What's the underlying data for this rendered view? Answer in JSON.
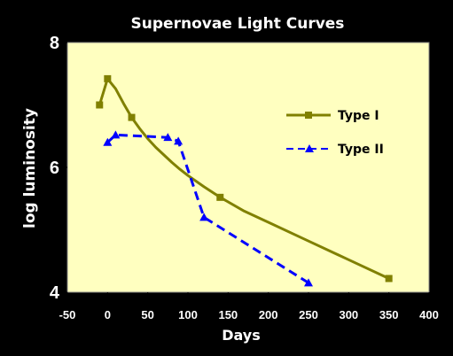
{
  "colors": {
    "background": "#000000",
    "plot_area": "#FFFFC0",
    "text": "#FFFFFF",
    "type_i": "#808000",
    "type_ii": "#0000FF"
  },
  "chart_data": {
    "type": "line",
    "title": "Supernovae Light Curves",
    "xlabel": "Days",
    "ylabel": "log luminosity",
    "xlim": [
      -50,
      400
    ],
    "ylim": [
      4,
      8
    ],
    "x_ticks": [
      "-50",
      "0",
      "50",
      "100",
      "150",
      "200",
      "250",
      "300",
      "350",
      "400"
    ],
    "y_ticks": [
      "4",
      "6",
      "8"
    ],
    "grid": false,
    "legend_position": "right",
    "series": [
      {
        "name": "Type I",
        "line_style": "solid",
        "marker": "square",
        "x": [
          -10,
          0,
          30,
          140,
          350
        ],
        "y": [
          7.0,
          7.42,
          6.8,
          5.52,
          4.22
        ],
        "curve_x": [
          -10,
          0,
          10,
          20,
          30,
          40,
          50,
          60,
          70,
          80,
          90,
          100,
          120,
          140,
          170,
          200,
          250,
          300,
          350
        ],
        "curve_y": [
          7.0,
          7.42,
          7.26,
          7.02,
          6.8,
          6.62,
          6.46,
          6.32,
          6.2,
          6.08,
          5.97,
          5.87,
          5.69,
          5.52,
          5.3,
          5.12,
          4.82,
          4.52,
          4.22
        ]
      },
      {
        "name": "Type II",
        "line_style": "dashed",
        "marker": "triangle",
        "x": [
          0,
          10,
          75,
          88,
          120,
          250
        ],
        "y": [
          6.4,
          6.52,
          6.48,
          6.42,
          5.2,
          4.15
        ]
      }
    ]
  }
}
